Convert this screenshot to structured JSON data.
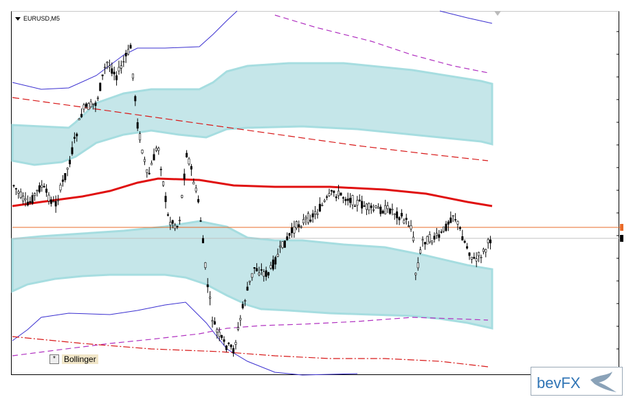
{
  "chart": {
    "symbol": "EURUSD,M5",
    "indicator_button": "*",
    "indicator_name": "Bollinger"
  },
  "logo": {
    "text": "bevFX"
  },
  "colors": {
    "background": "#ffffff",
    "band_fill": "#58b8c0",
    "band_edge": "#a6dde0",
    "middle_line": "#e01010",
    "dashed_red": "#d81818",
    "dashed_purple": "#b030c0",
    "outer_blue": "#3a2fd0",
    "current_price_line": "#e86b2a",
    "candle": "#000000",
    "logo_text": "#2f74b5"
  },
  "icons": [
    "dropdown-triangle-icon",
    "bird-logo-icon"
  ]
}
